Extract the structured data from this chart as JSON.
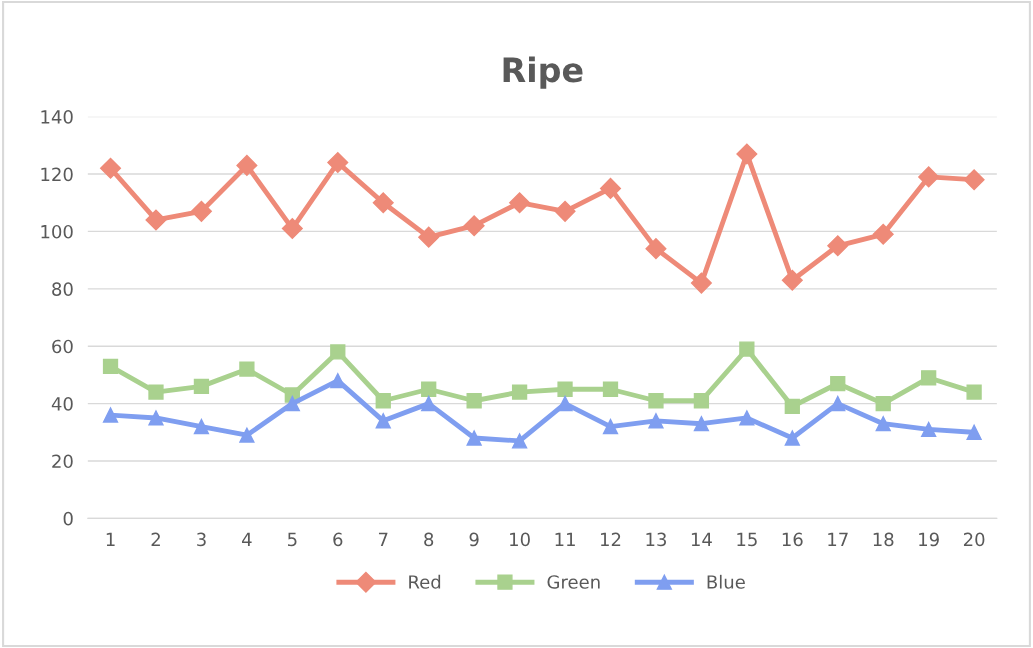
{
  "chart_data": {
    "type": "line",
    "title": "Ripe",
    "categories": [
      "1",
      "2",
      "3",
      "4",
      "5",
      "6",
      "7",
      "8",
      "9",
      "10",
      "11",
      "12",
      "13",
      "14",
      "15",
      "16",
      "17",
      "18",
      "19",
      "20"
    ],
    "series": [
      {
        "name": "Red",
        "color": "#ee8a78",
        "marker": "diamond",
        "values": [
          122,
          104,
          107,
          123,
          101,
          124,
          110,
          98,
          102,
          110,
          107,
          115,
          94,
          82,
          127,
          83,
          95,
          99,
          119,
          118
        ]
      },
      {
        "name": "Green",
        "color": "#a9d18e",
        "marker": "square",
        "values": [
          53,
          44,
          46,
          52,
          43,
          58,
          41,
          45,
          41,
          44,
          45,
          45,
          41,
          41,
          59,
          39,
          47,
          40,
          49,
          44
        ]
      },
      {
        "name": "Blue",
        "color": "#7f9ef0",
        "marker": "triangle",
        "values": [
          36,
          35,
          32,
          29,
          40,
          48,
          34,
          40,
          28,
          27,
          40,
          32,
          34,
          33,
          35,
          28,
          40,
          33,
          31,
          30
        ]
      }
    ],
    "ylim": [
      0,
      140
    ],
    "yticks": [
      0,
      20,
      40,
      60,
      80,
      100,
      120,
      140
    ],
    "grid": "y",
    "legend": "bottom",
    "line_style": "solid"
  }
}
